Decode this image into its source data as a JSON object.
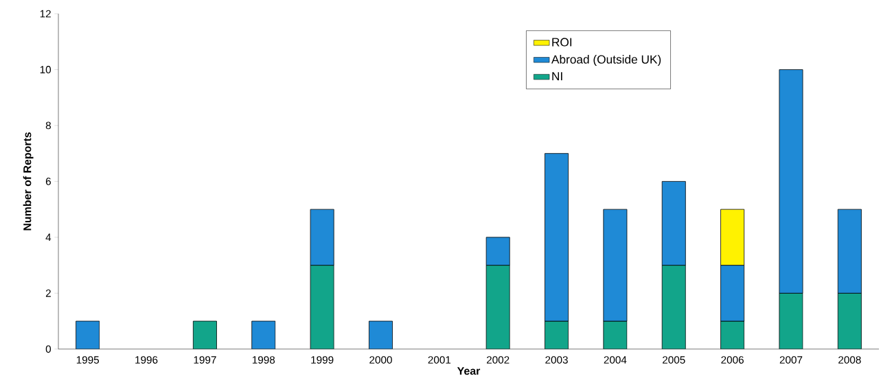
{
  "chart_data": {
    "type": "bar",
    "stacked": true,
    "xlabel": "Year",
    "ylabel": "Number of Reports",
    "categories": [
      "1995",
      "1996",
      "1997",
      "1998",
      "1999",
      "2000",
      "2001",
      "2002",
      "2003",
      "2004",
      "2005",
      "2006",
      "2007",
      "2008"
    ],
    "series": [
      {
        "name": "NI",
        "color": "#12a58a",
        "values": [
          null,
          null,
          1,
          null,
          3,
          null,
          null,
          3,
          1,
          1,
          3,
          1,
          2,
          2
        ]
      },
      {
        "name": "Abroad (Outside UK)",
        "color": "#1f8ad6",
        "values": [
          1,
          null,
          null,
          1,
          2,
          1,
          null,
          1,
          6,
          4,
          3,
          2,
          8,
          3
        ]
      },
      {
        "name": "ROI",
        "color": "#fff200",
        "values": [
          null,
          null,
          null,
          null,
          null,
          null,
          null,
          null,
          null,
          null,
          null,
          2,
          null,
          null
        ]
      }
    ],
    "ylim": [
      0,
      12
    ],
    "yticks": [
      0,
      2,
      4,
      6,
      8,
      10,
      12
    ],
    "grid": false,
    "legend": "top right"
  }
}
